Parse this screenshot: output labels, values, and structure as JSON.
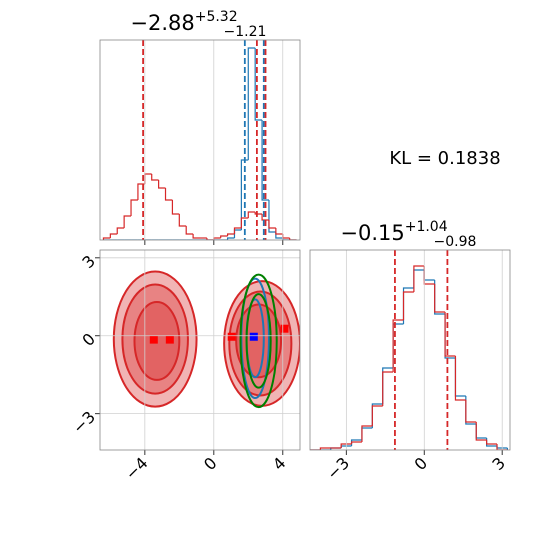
{
  "chart_data": [
    {
      "type": "histogram",
      "title": "−2.88",
      "title_sup": "+5.32",
      "title_sub": "−1.21",
      "xlim": [
        -6.6,
        5.0
      ],
      "ylim": [
        0,
        100
      ],
      "xticks": [
        -4,
        0,
        4
      ],
      "xticklabels": false,
      "grid": true,
      "bins": [
        -6.4,
        -6.0,
        -5.6,
        -5.2,
        -4.8,
        -4.4,
        -4.0,
        -3.6,
        -3.2,
        -2.8,
        -2.4,
        -2.0,
        -1.6,
        -1.2,
        -0.8,
        -0.4,
        0.0,
        0.4,
        0.8,
        1.2,
        1.6,
        2.0,
        2.4,
        2.8,
        3.2,
        3.6,
        4.0,
        4.4,
        4.8
      ],
      "series": [
        {
          "color": "#1f77b4",
          "counts": [
            0,
            0,
            0,
            0,
            0,
            0,
            0,
            0,
            0,
            0,
            0,
            0,
            0,
            0,
            0,
            0,
            0,
            0,
            1,
            5,
            40,
            96,
            60,
            20,
            4,
            1,
            0,
            0
          ]
        },
        {
          "color": "#d62728",
          "counts": [
            1,
            3,
            6,
            12,
            20,
            28,
            33,
            30,
            26,
            20,
            13,
            7,
            3,
            1,
            1,
            0,
            1,
            2,
            3,
            6,
            11,
            14,
            13,
            10,
            6,
            3,
            1,
            0
          ]
        }
      ],
      "vlines": [
        {
          "color": "#1f77b4",
          "values": [
            1.8,
            2.9
          ]
        },
        {
          "color": "#d62728",
          "values": [
            -4.1,
            2.5,
            3.0
          ]
        }
      ]
    },
    {
      "type": "contour",
      "xlim": [
        -6.6,
        5.0
      ],
      "ylim": [
        -4.4,
        3.3
      ],
      "xticks": [
        {
          "value": -4,
          "label": "−4"
        },
        0,
        4
      ],
      "yticks": [
        {
          "value": -3,
          "label": "−3"
        },
        0,
        3
      ],
      "grid": true,
      "series": [
        {
          "color": "#d62728",
          "fill": true,
          "levels": [
            {
              "cx": -3.4,
              "cy": -0.13,
              "rx": 2.4,
              "ry": 2.6
            },
            {
              "cx": -3.4,
              "cy": -0.13,
              "rx": 1.9,
              "ry": 2.1
            },
            {
              "cx": -3.3,
              "cy": -0.2,
              "rx": 1.3,
              "ry": 1.5
            },
            {
              "cx": 2.8,
              "cy": -0.3,
              "rx": 2.2,
              "ry": 2.4
            },
            {
              "cx": 2.7,
              "cy": -0.3,
              "rx": 1.8,
              "ry": 2.0
            },
            {
              "cx": 2.6,
              "cy": -0.2,
              "rx": 1.3,
              "ry": 1.4
            }
          ]
        },
        {
          "color": "#1f77b4",
          "fill": false,
          "levels": [
            {
              "cx": 2.4,
              "cy": -0.1,
              "rx": 0.8,
              "ry": 2.3
            },
            {
              "cx": 2.4,
              "cy": -0.1,
              "rx": 0.5,
              "ry": 1.5
            }
          ]
        },
        {
          "color": "#008000",
          "fill": false,
          "levels": [
            {
              "cx": 2.6,
              "cy": -0.2,
              "rx": 1.05,
              "ry": 2.55
            },
            {
              "cx": 2.6,
              "cy": -0.2,
              "rx": 0.7,
              "ry": 1.8
            }
          ]
        }
      ],
      "markers": [
        {
          "color": "#ff0000",
          "x": [
            -3.48,
            -2.55,
            1.04,
            4.1
          ],
          "y": [
            -0.15,
            -0.15,
            -0.04,
            0.27
          ]
        },
        {
          "color": "#0000ff",
          "x": [
            2.32
          ],
          "y": [
            -0.04
          ]
        }
      ]
    },
    {
      "type": "histogram",
      "title": "−0.15",
      "title_sup": "+1.04",
      "title_sub": "−0.98",
      "annotation": "KL = 0.1838",
      "xlim": [
        -4.4,
        3.3
      ],
      "ylim": [
        0,
        100
      ],
      "xticks": [
        {
          "value": -3,
          "label": "−3"
        },
        0,
        3
      ],
      "xticklabels": true,
      "grid": true,
      "bins": [
        -4.4,
        -4.0,
        -3.6,
        -3.2,
        -2.8,
        -2.4,
        -2.0,
        -1.6,
        -1.2,
        -0.8,
        -0.4,
        0.0,
        0.4,
        0.8,
        1.2,
        1.6,
        2.0,
        2.4,
        2.8,
        3.2
      ],
      "series": [
        {
          "color": "#1f77b4",
          "counts": [
            0,
            0,
            1,
            2,
            5,
            11,
            23,
            41,
            63,
            81,
            90,
            85,
            68,
            46,
            27,
            13,
            6,
            2,
            1
          ]
        },
        {
          "color": "#d62728",
          "counts": [
            0,
            1,
            1,
            3,
            4,
            12,
            22,
            39,
            65,
            79,
            92,
            83,
            69,
            47,
            25,
            14,
            5,
            3,
            0
          ]
        }
      ],
      "vlines": [
        {
          "color": "#d62728",
          "values": [
            -1.13,
            0.89
          ]
        }
      ]
    }
  ]
}
